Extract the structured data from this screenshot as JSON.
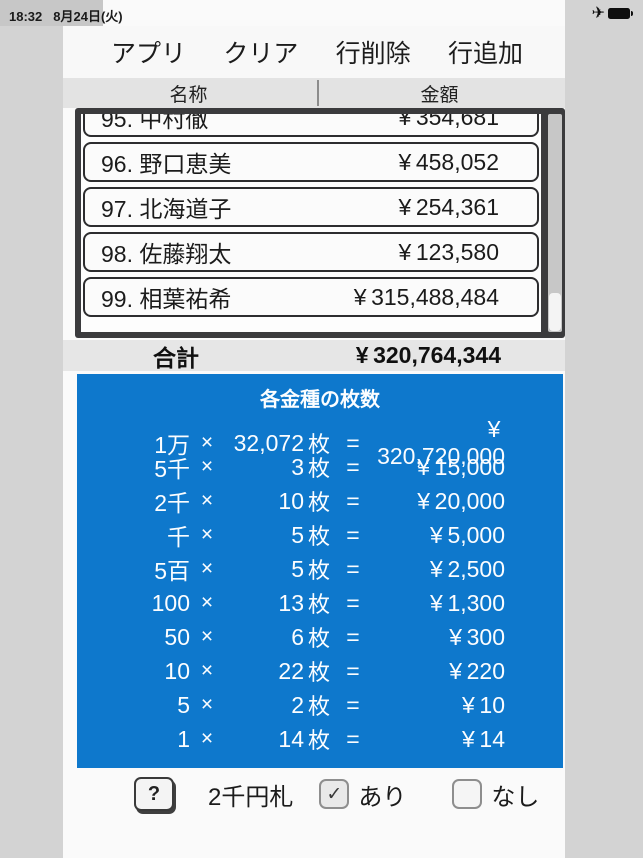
{
  "status_bar": {
    "time": "18:32",
    "date": "8月24日(火)"
  },
  "icons": {
    "airplane": "✈",
    "check": "✓"
  },
  "toolbar": {
    "buttons": [
      {
        "label": "アプリ"
      },
      {
        "label": "クリア"
      },
      {
        "label": "行削除"
      },
      {
        "label": "行追加"
      }
    ]
  },
  "column_header": {
    "name_label": "名称",
    "amount_label": "金額"
  },
  "table": {
    "rows": [
      {
        "name": "95. 中村徹",
        "amount": "¥ 354,681"
      },
      {
        "name": "96. 野口恵美",
        "amount": "¥ 458,052"
      },
      {
        "name": "97. 北海道子",
        "amount": "¥ 254,361"
      },
      {
        "name": "98. 佐藤翔太",
        "amount": "¥ 123,580"
      },
      {
        "name": "99. 相葉祐希",
        "amount": "¥ 315,488,484"
      }
    ]
  },
  "total": {
    "label": "合計",
    "amount": "¥ 320,764,344"
  },
  "denominations": {
    "title": "各金種の枚数",
    "multiply_sign": "×",
    "unit_suffix": "枚",
    "equals_sign": "=",
    "rows": [
      {
        "denom": "1万",
        "count": "32,072",
        "amount": "¥ 320,720,000"
      },
      {
        "denom": "5千",
        "count": "3",
        "amount": "¥ 15,000"
      },
      {
        "denom": "2千",
        "count": "10",
        "amount": "¥ 20,000"
      },
      {
        "denom": "千",
        "count": "5",
        "amount": "¥ 5,000"
      },
      {
        "denom": "5百",
        "count": "5",
        "amount": "¥ 2,500"
      },
      {
        "denom": "100",
        "count": "13",
        "amount": "¥ 1,300"
      },
      {
        "denom": "50",
        "count": "6",
        "amount": "¥ 300"
      },
      {
        "denom": "10",
        "count": "22",
        "amount": "¥ 220"
      },
      {
        "denom": "5",
        "count": "2",
        "amount": "¥ 10"
      },
      {
        "denom": "1",
        "count": "14",
        "amount": "¥ 14"
      }
    ]
  },
  "footer": {
    "help_label": "?",
    "bill_label": "2千円札",
    "option_yes": "あり",
    "option_no": "なし",
    "yes_checked": true,
    "no_checked": false
  },
  "colors": {
    "panel_blue": "#0e78cc",
    "frame_dark": "#3b3b3d",
    "margin_gray": "#d3d3d3",
    "header_gray": "#e3e3e3"
  }
}
